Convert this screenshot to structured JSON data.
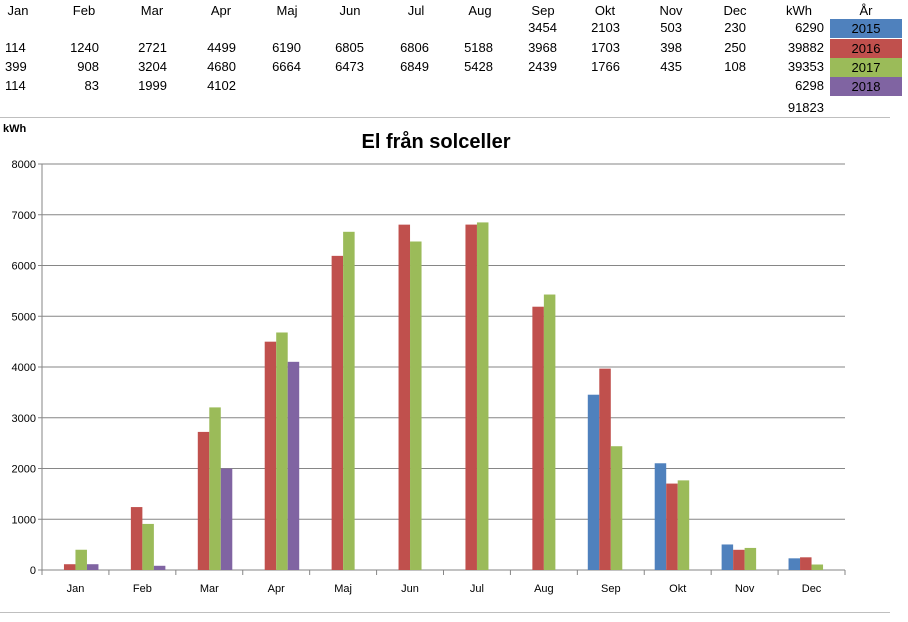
{
  "table": {
    "headers": [
      "Jan",
      "Feb",
      "Mar",
      "Apr",
      "Maj",
      "Jun",
      "Jul",
      "Aug",
      "Sep",
      "Okt",
      "Nov",
      "Dec",
      "kWh",
      "År"
    ],
    "rows": [
      {
        "year": "2015",
        "color": "#4f81bd",
        "values": [
          "",
          "",
          "",
          "",
          "",
          "",
          "",
          "",
          "3454",
          "2103",
          "503",
          "230"
        ],
        "total": "6290"
      },
      {
        "year": "2016",
        "color": "#c0504d",
        "values": [
          "114",
          "1240",
          "2721",
          "4499",
          "6190",
          "6805",
          "6806",
          "5188",
          "3968",
          "1703",
          "398",
          "250"
        ],
        "total": "39882"
      },
      {
        "year": "2017",
        "color": "#9bbb59",
        "values": [
          "399",
          "908",
          "3204",
          "4680",
          "6664",
          "6473",
          "6849",
          "5428",
          "2439",
          "1766",
          "435",
          "108"
        ],
        "total": "39353"
      },
      {
        "year": "2018",
        "color": "#8064a2",
        "values": [
          "114",
          "83",
          "1999",
          "4102",
          "",
          "",
          "",
          "",
          "",
          "",
          "",
          ""
        ],
        "total": "6298"
      }
    ],
    "grand_total": "91823"
  },
  "chart_data": {
    "type": "bar",
    "title": "El från solceller",
    "ylabel": "kWh",
    "xlabel": "",
    "categories": [
      "Jan",
      "Feb",
      "Mar",
      "Apr",
      "Maj",
      "Jun",
      "Jul",
      "Aug",
      "Sep",
      "Okt",
      "Nov",
      "Dec"
    ],
    "ylim": [
      0,
      8000
    ],
    "yticks": [
      0,
      1000,
      2000,
      3000,
      4000,
      5000,
      6000,
      7000,
      8000
    ],
    "grid": true,
    "series": [
      {
        "name": "2015",
        "color": "#4f81bd",
        "values": [
          null,
          null,
          null,
          null,
          null,
          null,
          null,
          null,
          3454,
          2103,
          503,
          230
        ]
      },
      {
        "name": "2016",
        "color": "#c0504d",
        "values": [
          114,
          1240,
          2721,
          4499,
          6190,
          6805,
          6806,
          5188,
          3968,
          1703,
          398,
          250
        ]
      },
      {
        "name": "2017",
        "color": "#9bbb59",
        "values": [
          399,
          908,
          3204,
          4680,
          6664,
          6473,
          6849,
          5428,
          2439,
          1766,
          435,
          108
        ]
      },
      {
        "name": "2018",
        "color": "#8064a2",
        "values": [
          114,
          83,
          1999,
          4102,
          null,
          null,
          null,
          null,
          null,
          null,
          null,
          null
        ]
      }
    ]
  }
}
